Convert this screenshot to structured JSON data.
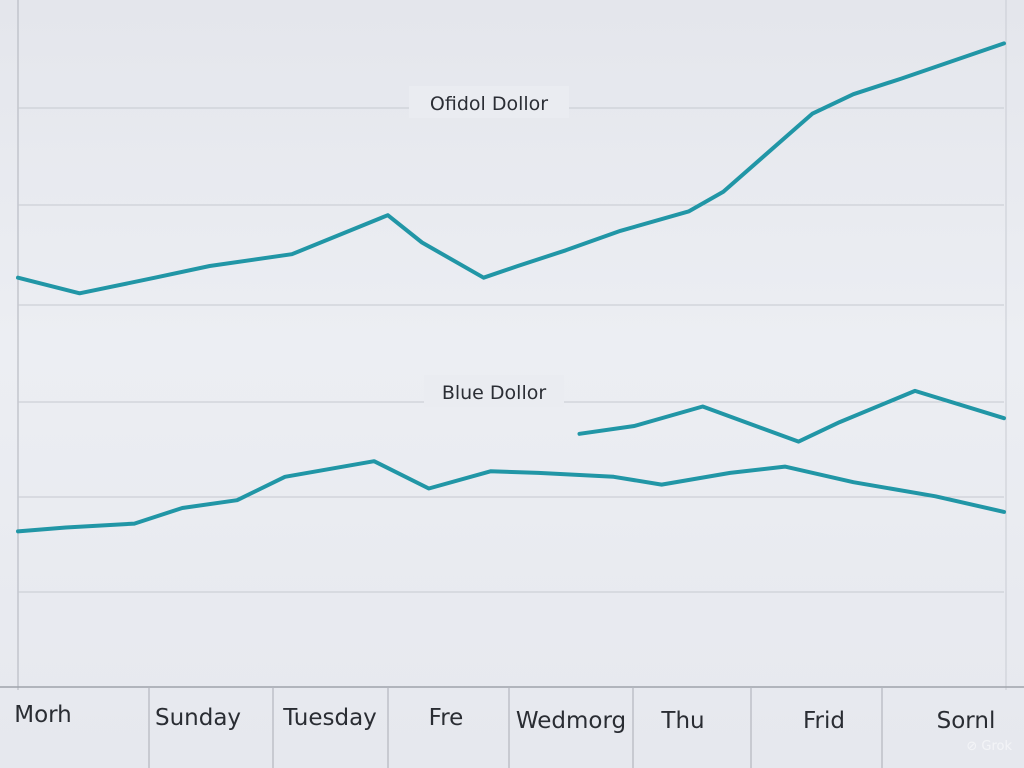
{
  "chart_data": {
    "type": "line",
    "title": "",
    "xlabel": "",
    "ylabel": "",
    "categories": [
      "Morh",
      "Sunday",
      "Tuesday",
      "Fre",
      "Wedmorg",
      "Thu",
      "Frid",
      "Sornl"
    ],
    "grid": true,
    "legend": "inline",
    "series": [
      {
        "name": "Ofidol Dollor",
        "color": "#2196a6",
        "x": [
          0,
          0.45,
          1.0,
          1.4,
          2.0,
          2.7,
          2.95,
          3.4,
          3.65,
          4.0,
          4.4,
          4.9,
          5.15,
          5.8,
          6.1,
          6.45,
          7.2
        ],
        "values": [
          4.0,
          3.8,
          4.0,
          4.15,
          4.3,
          4.8,
          4.45,
          4.0,
          4.15,
          4.35,
          4.6,
          4.85,
          5.1,
          6.1,
          6.35,
          6.55,
          7.0
        ]
      },
      {
        "name": "Blue Dollor",
        "color": "#2196a6",
        "x": [
          4.1,
          4.5,
          5.0,
          5.7,
          6.0,
          6.55,
          7.2
        ],
        "values": [
          2.0,
          2.1,
          2.35,
          1.9,
          2.15,
          2.55,
          2.2
        ]
      },
      {
        "name": "",
        "color": "#2196a6",
        "x": [
          0,
          0.35,
          0.85,
          1.2,
          1.6,
          1.95,
          2.6,
          3.0,
          3.45,
          3.8,
          4.35,
          4.7,
          5.2,
          5.6,
          6.1,
          6.7,
          7.2
        ],
        "values": [
          0.75,
          0.8,
          0.85,
          1.05,
          1.15,
          1.45,
          1.65,
          1.3,
          1.52,
          1.5,
          1.45,
          1.35,
          1.5,
          1.58,
          1.38,
          1.2,
          1.0
        ]
      }
    ],
    "ylim": [
      0,
      7.3
    ],
    "xlim": [
      0,
      7.2
    ]
  },
  "watermark": "Grok"
}
